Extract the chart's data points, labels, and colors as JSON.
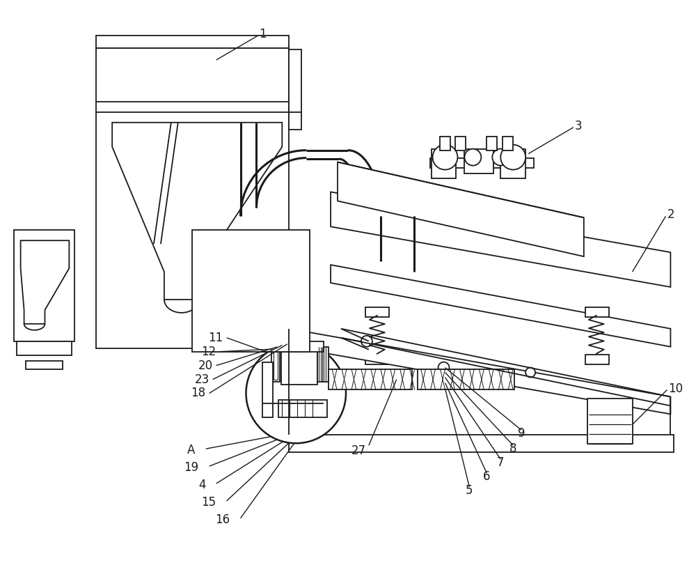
{
  "bg_color": "#ffffff",
  "line_color": "#1a1a1a",
  "lw": 1.3,
  "fig_width": 10.0,
  "fig_height": 8.21,
  "dpi": 100
}
